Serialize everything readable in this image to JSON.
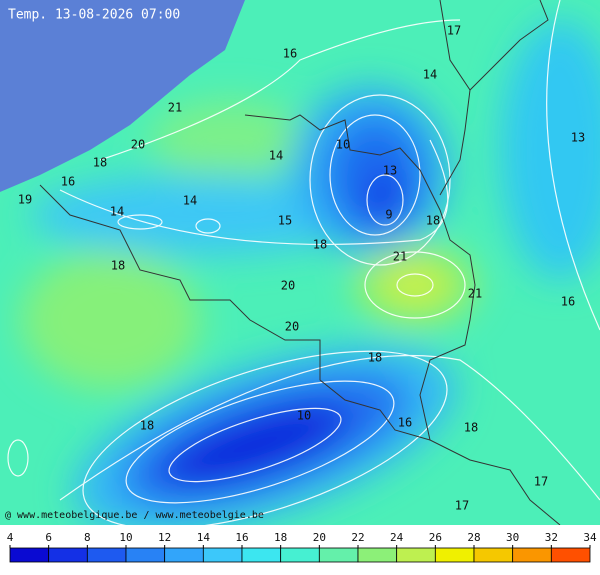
{
  "title": "Temp. 13-08-2026 07:00",
  "credit": "@ www.meteobelgique.be / www.meteobelgie.be",
  "contour_labels": [
    17,
    16,
    14,
    21,
    20,
    10,
    14,
    13,
    18,
    13,
    16,
    19,
    14,
    14,
    9,
    18,
    15,
    18,
    21,
    18,
    20,
    21,
    16,
    20,
    18,
    10,
    16,
    18,
    18,
    17,
    17
  ],
  "colorbar": {
    "ticks": [
      4,
      6,
      8,
      10,
      12,
      14,
      16,
      18,
      20,
      22,
      24,
      26,
      28,
      30,
      32,
      34
    ],
    "colors": [
      "#0a0ad2",
      "#1430e6",
      "#1e5af0",
      "#2882f5",
      "#32a5fa",
      "#3cc8fa",
      "#3ce6f0",
      "#46f0d2",
      "#64f0aa",
      "#8cf078",
      "#bef050",
      "#f0f000",
      "#f5c800",
      "#fa9600",
      "#ff5000"
    ]
  }
}
